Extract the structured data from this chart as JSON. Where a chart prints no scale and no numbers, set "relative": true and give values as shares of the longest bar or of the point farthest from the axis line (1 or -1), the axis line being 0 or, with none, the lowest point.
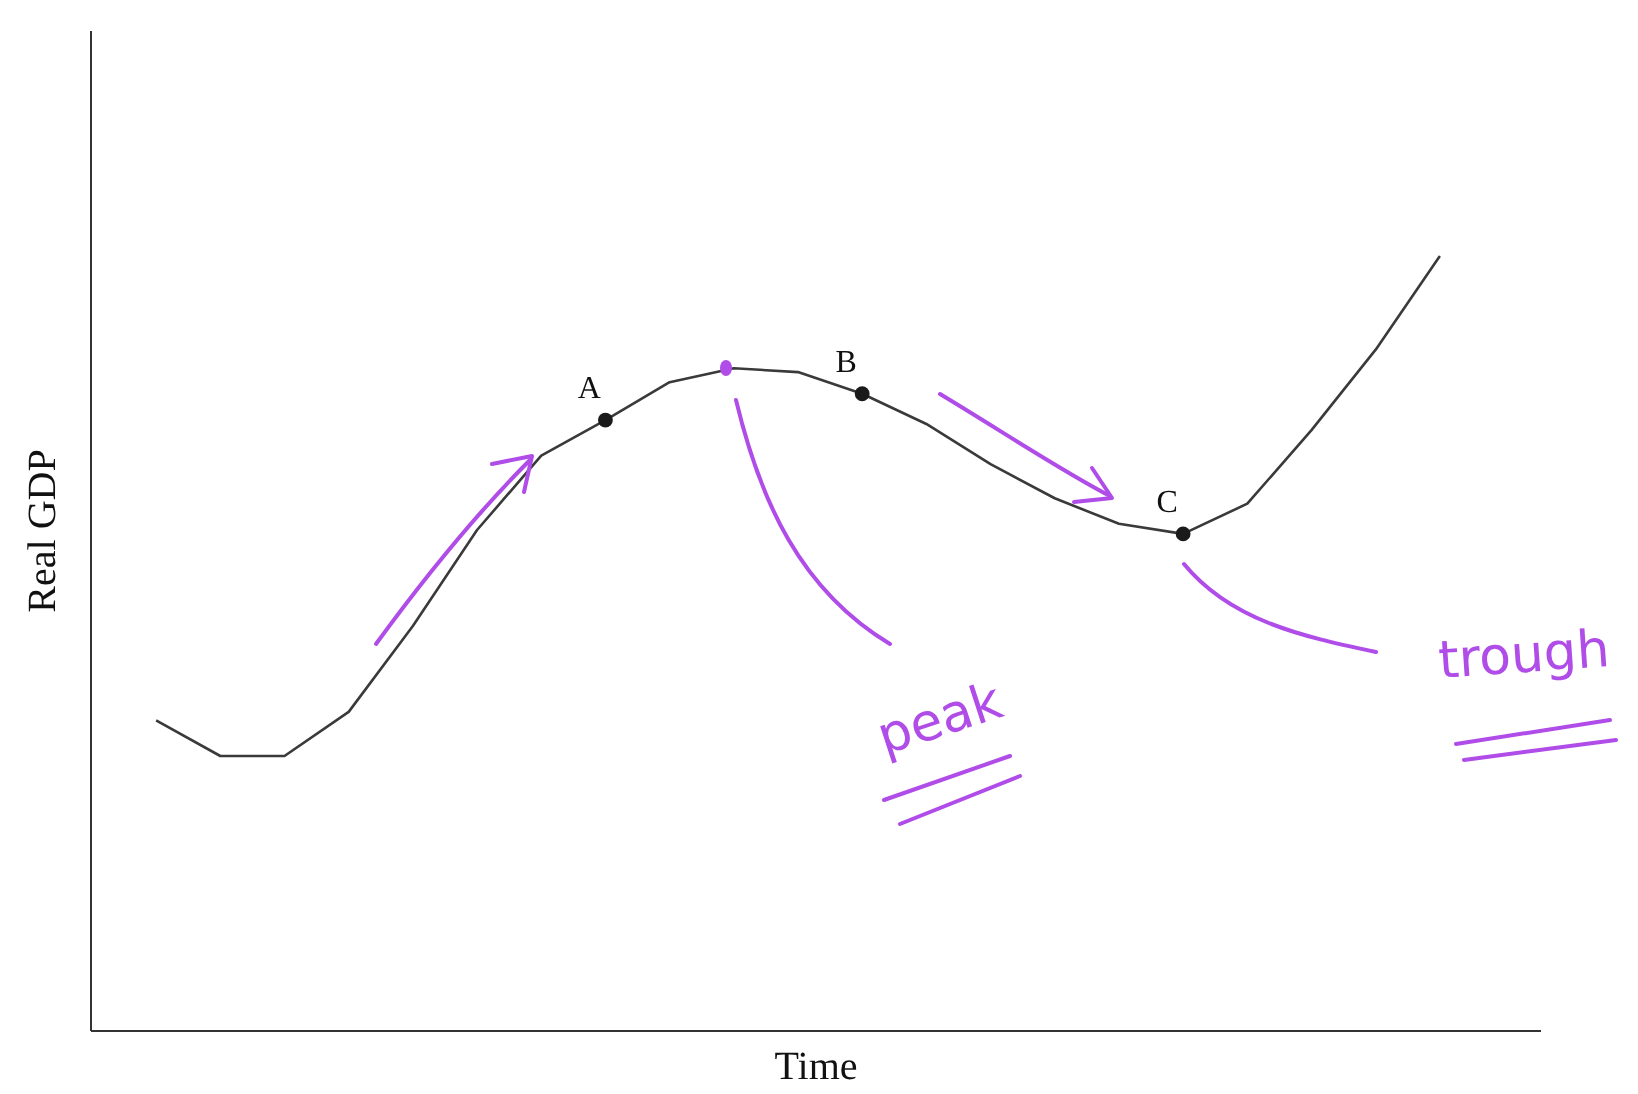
{
  "chart_data": {
    "type": "line",
    "relative": true,
    "xlabel": "Time",
    "ylabel": "Real GDP",
    "categories": [
      null,
      null,
      null,
      null,
      null,
      null,
      null,
      null,
      null,
      null,
      null,
      null,
      null,
      null,
      null,
      null,
      null,
      null,
      null,
      null,
      null
    ],
    "series": [
      {
        "color": "#3a3a3a",
        "values": [
          0.4,
          0.354,
          0.354,
          0.411,
          0.522,
          0.646,
          0.742,
          0.788,
          0.837,
          0.855,
          0.85,
          0.822,
          0.783,
          0.731,
          0.687,
          0.654,
          0.641,
          0.68,
          0.775,
          0.879,
          1
        ]
      }
    ],
    "annotations": [
      {
        "text": "A",
        "y": 0.788
      },
      {
        "text": "B",
        "y": 0.822
      },
      {
        "text": "C",
        "y": 0.641
      },
      "peak",
      "trough"
    ]
  }
}
